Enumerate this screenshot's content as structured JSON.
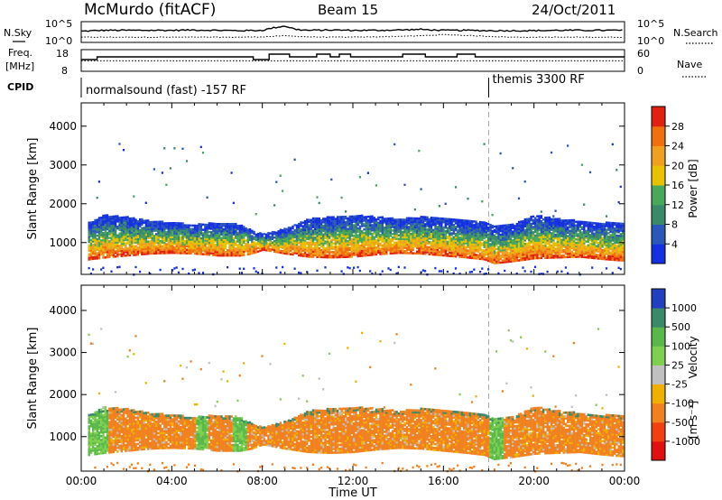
{
  "header": {
    "station": "McMurdo (fitACF)",
    "beam": "Beam 15",
    "date": "24/Oct/2011"
  },
  "top_strip": {
    "nsky_label": "N.Sky",
    "nsearch_label": "N.Search",
    "freq_label_1": "Freq.",
    "freq_label_2": "[MHz]",
    "nave_label": "Nave",
    "cpid_label": "CPID",
    "left_ticks_noise": [
      "10^5",
      "10^0"
    ],
    "right_ticks_noise": [
      "10^5",
      "10^0"
    ],
    "left_ticks_freq": [
      "18",
      "8"
    ],
    "right_ticks_nave": [
      "60",
      "0"
    ],
    "cpid_segments": [
      {
        "label": "normalsound (fast) -157 RF",
        "start_hour": 0
      },
      {
        "label": "themis 3300 RF",
        "start_hour": 18
      }
    ]
  },
  "chart_data": [
    {
      "type": "heatmap",
      "title": "",
      "xlabel": "Time UT",
      "ylabel": "Slant Range [km]",
      "x_range_hours": [
        0,
        24
      ],
      "x_ticks": [
        "00:00",
        "04:00",
        "08:00",
        "12:00",
        "16:00",
        "20:00",
        "00:00"
      ],
      "ylim": [
        180,
        4600
      ],
      "y_ticks": [
        1000,
        2000,
        3000,
        4000
      ],
      "colorbar": {
        "label": "Power [dB]",
        "ticks": [
          "4",
          "8",
          "12",
          "16",
          "20",
          "24",
          "28"
        ],
        "colors": [
          "#1530e0",
          "#2b57b8",
          "#3a8a6a",
          "#49a85a",
          "#e8c200",
          "#f0a020",
          "#f07010",
          "#e02010"
        ]
      },
      "echo_band": {
        "hours": [
          0.3,
          1,
          2,
          3,
          4,
          5,
          6,
          7,
          7.5,
          8,
          9,
          10,
          11,
          12,
          13,
          14,
          15,
          16,
          17,
          17.8,
          18.2,
          19,
          20,
          21,
          22,
          23,
          23.9
        ],
        "lower_km": [
          550,
          600,
          650,
          700,
          720,
          700,
          650,
          650,
          700,
          800,
          700,
          620,
          600,
          620,
          680,
          720,
          700,
          650,
          600,
          550,
          450,
          500,
          580,
          600,
          620,
          560,
          520
        ],
        "upper_km": [
          1500,
          1700,
          1650,
          1550,
          1500,
          1450,
          1500,
          1450,
          1300,
          1200,
          1350,
          1600,
          1650,
          1700,
          1650,
          1600,
          1650,
          1600,
          1550,
          1500,
          1400,
          1450,
          1700,
          1600,
          1550,
          1500,
          1500
        ]
      },
      "cpid_change_hour": 18
    },
    {
      "type": "heatmap",
      "title": "",
      "xlabel": "Time UT",
      "ylabel": "Slant Range [km]",
      "x_range_hours": [
        0,
        24
      ],
      "x_ticks": [
        "00:00",
        "04:00",
        "08:00",
        "12:00",
        "16:00",
        "20:00",
        "00:00"
      ],
      "ylim": [
        180,
        4600
      ],
      "y_ticks": [
        1000,
        2000,
        3000,
        4000
      ],
      "colorbar": {
        "label": "Velocity",
        "unit": "[m s⁻¹]",
        "ticks": [
          "1000",
          "500",
          "100",
          "25",
          "-25",
          "-100",
          "-500",
          "-1000"
        ],
        "colors": [
          "#2040c0",
          "#3a8a6a",
          "#5ab84a",
          "#80d050",
          "#c0c0c0",
          "#f0b000",
          "#f08020",
          "#f04010",
          "#e01010"
        ]
      },
      "cpid_change_hour": 18
    }
  ],
  "noise_trace": {
    "hours": [
      0,
      1,
      2,
      3,
      4,
      5,
      6,
      7,
      8,
      8.5,
      9,
      9.5,
      10,
      11,
      12,
      13,
      14,
      15,
      16,
      17,
      18,
      19,
      20,
      21,
      22,
      23,
      24
    ],
    "sky": [
      0.55,
      0.6,
      0.6,
      0.6,
      0.6,
      0.62,
      0.6,
      0.58,
      0.6,
      0.75,
      0.85,
      0.65,
      0.6,
      0.62,
      0.6,
      0.6,
      0.62,
      0.65,
      0.6,
      0.6,
      0.58,
      0.58,
      0.58,
      0.6,
      0.6,
      0.6,
      0.6
    ],
    "search": [
      0.2,
      0.2,
      0.2,
      0.2,
      0.2,
      0.2,
      0.2,
      0.2,
      0.22,
      0.25,
      0.28,
      0.25,
      0.22,
      0.2,
      0.2,
      0.22,
      0.25,
      0.28,
      0.35,
      0.3,
      0.25,
      0.2,
      0.2,
      0.2,
      0.2,
      0.2,
      0.2
    ]
  },
  "freq_trace": {
    "steps": [
      {
        "from": 0,
        "to": 0.7,
        "level": 0.55
      },
      {
        "from": 0.7,
        "to": 7.6,
        "level": 0.7
      },
      {
        "from": 7.6,
        "to": 8.3,
        "level": 0.55
      },
      {
        "from": 8.3,
        "to": 9.2,
        "level": 0.85
      },
      {
        "from": 9.2,
        "to": 10.4,
        "level": 0.7
      },
      {
        "from": 10.4,
        "to": 11,
        "level": 0.85
      },
      {
        "from": 11,
        "to": 11.4,
        "level": 0.7
      },
      {
        "from": 11.4,
        "to": 11.9,
        "level": 0.85
      },
      {
        "from": 11.9,
        "to": 14.2,
        "level": 0.7
      },
      {
        "from": 14.2,
        "to": 15.2,
        "level": 0.85
      },
      {
        "from": 15.2,
        "to": 16.6,
        "level": 0.7
      },
      {
        "from": 16.6,
        "to": 17.4,
        "level": 0.85
      },
      {
        "from": 17.4,
        "to": 24,
        "level": 0.7
      }
    ],
    "nave_level": 0.48
  }
}
